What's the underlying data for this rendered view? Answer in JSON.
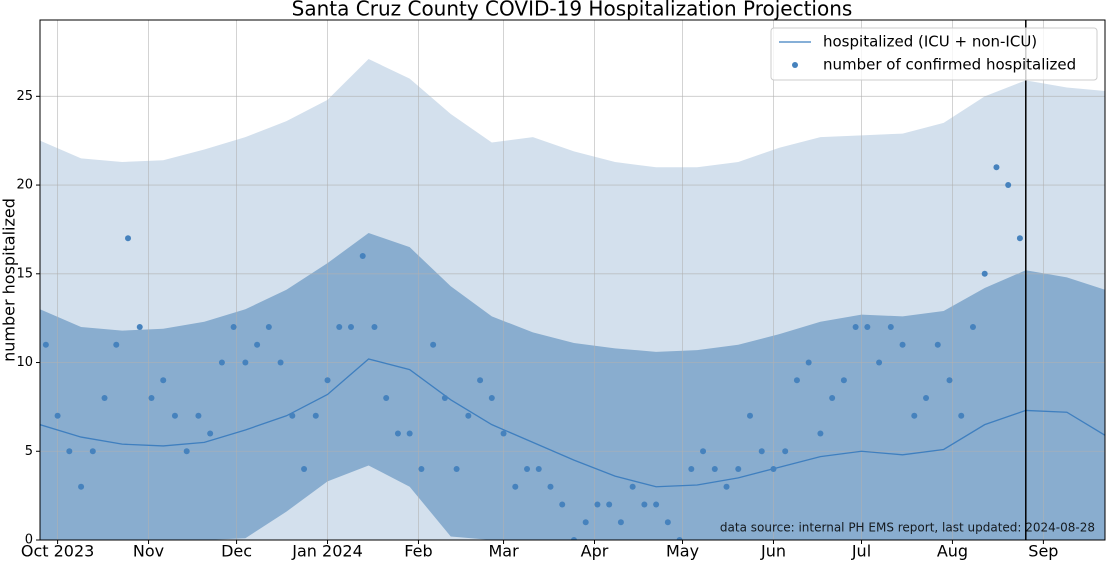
{
  "chart_data": {
    "type": "line",
    "title": "Santa Cruz County COVID-19 Hospitalization Projections",
    "ylabel": "number hospitalized",
    "annotation": "data source: internal PH EMS report, last updated: 2024-08-28",
    "x": [
      "2023-09-25",
      "2023-10-09",
      "2023-10-23",
      "2023-11-06",
      "2023-11-20",
      "2023-12-04",
      "2023-12-18",
      "2024-01-01",
      "2024-01-15",
      "2024-01-29",
      "2024-02-12",
      "2024-02-26",
      "2024-03-11",
      "2024-03-25",
      "2024-04-08",
      "2024-04-22",
      "2024-05-06",
      "2024-05-20",
      "2024-06-03",
      "2024-06-17",
      "2024-07-01",
      "2024-07-15",
      "2024-07-29",
      "2024-08-12",
      "2024-08-26",
      "2024-09-09",
      "2024-09-22"
    ],
    "series": [
      {
        "name": "hospitalized (ICU + non-ICU)",
        "color": "#3f7fbf",
        "values": [
          6.5,
          5.8,
          5.4,
          5.3,
          5.5,
          6.2,
          7.0,
          8.2,
          10.2,
          9.6,
          7.9,
          6.5,
          5.5,
          4.5,
          3.6,
          3.0,
          3.1,
          3.5,
          4.1,
          4.7,
          5.0,
          4.8,
          5.1,
          6.5,
          7.3,
          7.2,
          5.9
        ]
      }
    ],
    "bands": [
      {
        "color": "#d3e0ed",
        "upper": [
          22.5,
          21.5,
          21.3,
          21.4,
          22.0,
          22.7,
          23.6,
          24.8,
          27.1,
          26.0,
          24.0,
          22.4,
          22.7,
          21.9,
          21.3,
          21.0,
          21.0,
          21.3,
          22.1,
          22.7,
          22.8,
          22.9,
          23.5,
          25.0,
          25.9,
          25.5,
          25.3
        ],
        "lower": [
          0,
          0,
          0,
          0,
          0,
          0,
          0,
          0,
          0,
          0,
          0,
          0,
          0,
          0,
          0,
          0,
          0,
          0,
          0,
          0,
          0,
          0,
          0,
          0,
          0,
          0,
          0
        ]
      },
      {
        "color": "#89adcf",
        "upper": [
          13.0,
          12.0,
          11.8,
          11.9,
          12.3,
          13.0,
          14.1,
          15.6,
          17.3,
          16.5,
          14.3,
          12.6,
          11.7,
          11.1,
          10.8,
          10.6,
          10.7,
          11.0,
          11.6,
          12.3,
          12.7,
          12.6,
          12.9,
          14.2,
          15.2,
          14.8,
          14.1
        ],
        "lower": [
          0,
          0,
          0,
          0,
          0,
          0.1,
          1.6,
          3.3,
          4.2,
          3.0,
          0.2,
          0,
          0,
          0,
          0,
          0,
          0,
          0,
          0,
          0,
          0,
          0,
          0,
          0,
          0,
          0,
          0
        ]
      }
    ],
    "scatter": {
      "name": "number of confirmed hospitalized",
      "color": "#4682bd",
      "x": [
        "2023-09-27",
        "2023-10-01",
        "2023-10-05",
        "2023-10-09",
        "2023-10-13",
        "2023-10-17",
        "2023-10-21",
        "2023-10-25",
        "2023-10-29",
        "2023-11-02",
        "2023-11-06",
        "2023-11-10",
        "2023-11-14",
        "2023-11-18",
        "2023-11-22",
        "2023-11-26",
        "2023-11-30",
        "2023-12-04",
        "2023-12-08",
        "2023-12-12",
        "2023-12-16",
        "2023-12-20",
        "2023-12-24",
        "2023-12-28",
        "2024-01-01",
        "2024-01-05",
        "2024-01-09",
        "2024-01-13",
        "2024-01-17",
        "2024-01-21",
        "2024-01-25",
        "2024-01-29",
        "2024-02-02",
        "2024-02-06",
        "2024-02-10",
        "2024-02-14",
        "2024-02-18",
        "2024-02-22",
        "2024-02-26",
        "2024-03-01",
        "2024-03-05",
        "2024-03-09",
        "2024-03-13",
        "2024-03-17",
        "2024-03-21",
        "2024-03-25",
        "2024-03-29",
        "2024-04-02",
        "2024-04-06",
        "2024-04-10",
        "2024-04-14",
        "2024-04-18",
        "2024-04-22",
        "2024-04-26",
        "2024-04-30",
        "2024-05-04",
        "2024-05-08",
        "2024-05-12",
        "2024-05-16",
        "2024-05-20",
        "2024-05-24",
        "2024-05-28",
        "2024-06-01",
        "2024-06-05",
        "2024-06-09",
        "2024-06-13",
        "2024-06-17",
        "2024-06-21",
        "2024-06-25",
        "2024-06-29",
        "2024-07-03",
        "2024-07-07",
        "2024-07-11",
        "2024-07-15",
        "2024-07-19",
        "2024-07-23",
        "2024-07-27",
        "2024-07-31",
        "2024-08-04",
        "2024-08-08",
        "2024-08-12",
        "2024-08-16",
        "2024-08-20",
        "2024-08-24"
      ],
      "values": [
        11,
        7,
        5,
        3,
        5,
        8,
        11,
        17,
        12,
        8,
        9,
        7,
        5,
        7,
        6,
        10,
        12,
        10,
        11,
        12,
        10,
        7,
        4,
        7,
        9,
        12,
        12,
        16,
        12,
        8,
        6,
        6,
        4,
        11,
        8,
        4,
        7,
        9,
        8,
        6,
        3,
        4,
        4,
        3,
        2,
        0,
        1,
        2,
        2,
        1,
        3,
        2,
        2,
        1,
        0,
        4,
        5,
        4,
        3,
        4,
        7,
        5,
        4,
        5,
        9,
        10,
        6,
        8,
        9,
        12,
        12,
        10,
        12,
        11,
        7,
        8,
        11,
        9,
        7,
        12,
        15,
        21,
        20,
        17
      ]
    },
    "xlim": [
      "2023-09-25",
      "2024-09-22"
    ],
    "xticks": [
      {
        "value": "2023-10-01",
        "label": "Oct 2023"
      },
      {
        "value": "2023-11-01",
        "label": "Nov"
      },
      {
        "value": "2023-12-01",
        "label": "Dec"
      },
      {
        "value": "2024-01-01",
        "label": "Jan 2024"
      },
      {
        "value": "2024-02-01",
        "label": "Feb"
      },
      {
        "value": "2024-03-01",
        "label": "Mar"
      },
      {
        "value": "2024-04-01",
        "label": "Apr"
      },
      {
        "value": "2024-05-01",
        "label": "May"
      },
      {
        "value": "2024-06-01",
        "label": "Jun"
      },
      {
        "value": "2024-07-01",
        "label": "Jul"
      },
      {
        "value": "2024-08-01",
        "label": "Aug"
      },
      {
        "value": "2024-09-01",
        "label": "Sep"
      }
    ],
    "ylim": [
      0,
      29.3
    ],
    "yticks": [
      0,
      5,
      10,
      15,
      20,
      25
    ],
    "grid": true,
    "legend": "upper right",
    "vline": "2024-08-26",
    "vline_color": "#000000"
  }
}
